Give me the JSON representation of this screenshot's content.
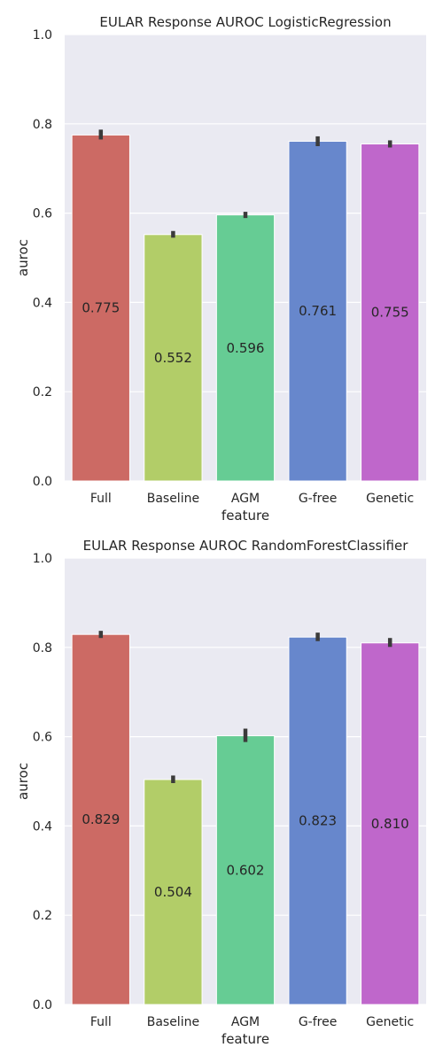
{
  "chart_data": [
    {
      "type": "bar",
      "title": "EULAR Response AUROC LogisticRegression",
      "xlabel": "feature",
      "ylabel": "auroc",
      "ylim": [
        0,
        1.0
      ],
      "yticks": [
        "0.0",
        "0.2",
        "0.4",
        "0.6",
        "0.8",
        "1.0"
      ],
      "grid": true,
      "categories": [
        "Full",
        "Baseline",
        "AGM",
        "G-free",
        "Genetic"
      ],
      "values": [
        0.775,
        0.552,
        0.596,
        0.761,
        0.755
      ],
      "value_labels": [
        "0.775",
        "0.552",
        "0.596",
        "0.761",
        "0.755"
      ],
      "errors": [
        [
          0.765,
          0.787
        ],
        [
          0.545,
          0.56
        ],
        [
          0.589,
          0.603
        ],
        [
          0.75,
          0.772
        ],
        [
          0.747,
          0.763
        ]
      ],
      "colors": [
        "#cc6a64",
        "#b2cd68",
        "#66cc94",
        "#6787cc",
        "#bf67cb"
      ]
    },
    {
      "type": "bar",
      "title": "EULAR Response AUROC RandomForestClassifier",
      "xlabel": "feature",
      "ylabel": "auroc",
      "ylim": [
        0,
        1.0
      ],
      "yticks": [
        "0.0",
        "0.2",
        "0.4",
        "0.6",
        "0.8",
        "1.0"
      ],
      "grid": true,
      "categories": [
        "Full",
        "Baseline",
        "AGM",
        "G-free",
        "Genetic"
      ],
      "values": [
        0.829,
        0.504,
        0.602,
        0.823,
        0.81
      ],
      "value_labels": [
        "0.829",
        "0.504",
        "0.602",
        "0.823",
        "0.810"
      ],
      "errors": [
        [
          0.821,
          0.837
        ],
        [
          0.496,
          0.513
        ],
        [
          0.588,
          0.618
        ],
        [
          0.814,
          0.833
        ],
        [
          0.801,
          0.821
        ]
      ],
      "colors": [
        "#cc6a64",
        "#b2cd68",
        "#66cc94",
        "#6787cc",
        "#bf67cb"
      ]
    }
  ]
}
